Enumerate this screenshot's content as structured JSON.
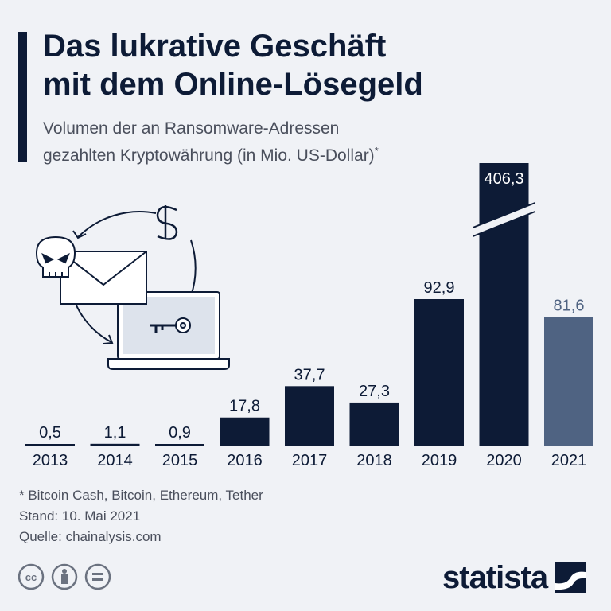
{
  "header": {
    "title_line1": "Das lukrative Geschäft",
    "title_line2": "mit dem Online-Lösegeld",
    "subtitle_line1": "Volumen der an Ransomware-Adressen",
    "subtitle_line2": "gezahlten Kryptowährung (in Mio. US-Dollar)",
    "subtitle_mark": "*"
  },
  "chart_data": {
    "type": "bar",
    "title": "Das lukrative Geschäft mit dem Online-Lösegeld",
    "ylabel": "Mio. US-Dollar",
    "categories": [
      "2013",
      "2014",
      "2015",
      "2016",
      "2017",
      "2018",
      "2019",
      "2020",
      "2021"
    ],
    "values": [
      0.5,
      1.1,
      0.9,
      17.8,
      37.7,
      27.3,
      92.9,
      406.3,
      81.6
    ],
    "labels": [
      "0,5",
      "1,1",
      "0,9",
      "17,8",
      "37,7",
      "27,3",
      "92,9",
      "406,3",
      "81,6"
    ],
    "axis_break_category": "2020",
    "highlight_category": "2021",
    "colors": {
      "bar": "#0d1b36",
      "bar_highlight": "#4f6382"
    }
  },
  "footer": {
    "note": "* Bitcoin Cash, Bitcoin, Ethereum, Tether",
    "date": "Stand: 10. Mai 2021",
    "source": "Quelle: chainalysis.com",
    "brand": "statista"
  },
  "colors": {
    "background": "#f0f2f6",
    "dark": "#0d1b36",
    "gray_text": "#4a4f5c"
  }
}
